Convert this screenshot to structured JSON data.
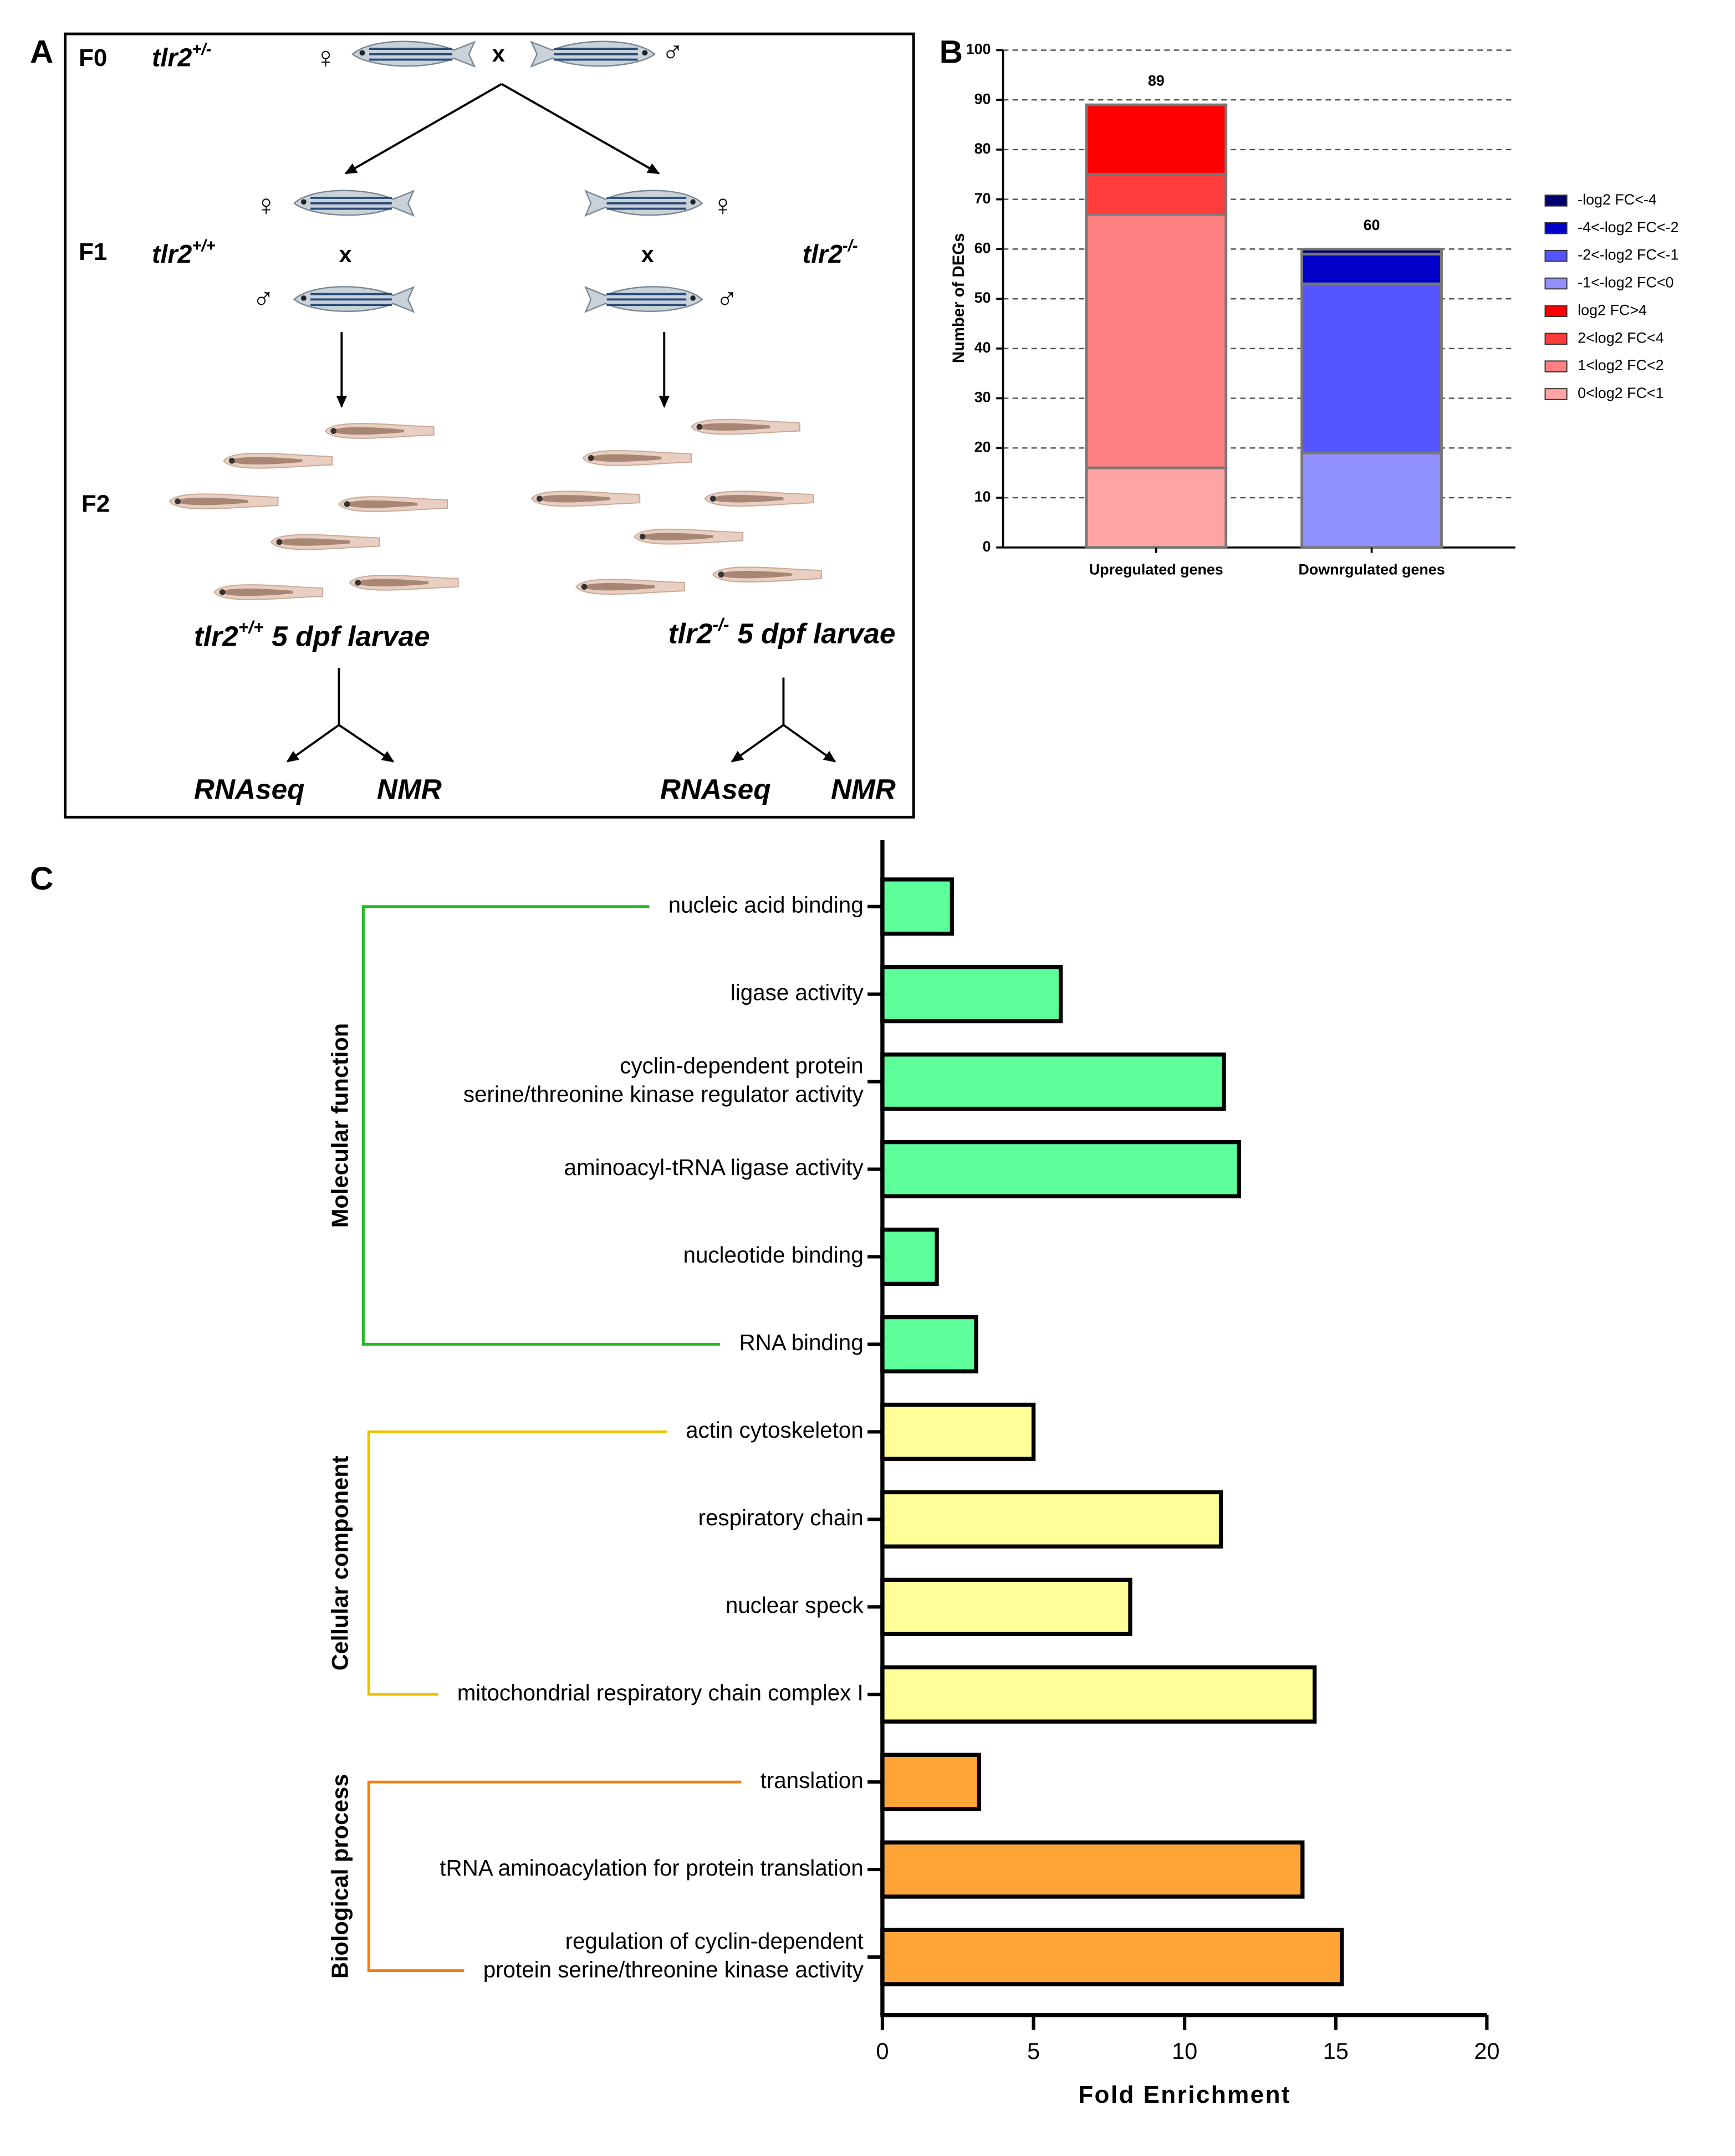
{
  "diagram": {
    "panel": "A",
    "generations": [
      "F0",
      "F1",
      "F2"
    ],
    "gene": "tlr2",
    "parent_genotype": "+/-",
    "wildtype": "+/+",
    "mutant": "-/-",
    "cross": "x",
    "female": "♀",
    "male": "♂",
    "larvae": "5 dpf larvae",
    "assays": [
      "RNAseq",
      "NMR"
    ]
  },
  "chart_data": [
    {
      "type": "stacked-bar",
      "panel": "B",
      "y_label": "Number of DEGs",
      "categories": [
        "Upregulated genes",
        "Downrgulated genes"
      ],
      "totals": [
        89,
        60
      ],
      "series": [
        {
          "name": "-log2 FC<-4",
          "color": "#00006e",
          "values": [
            null,
            1
          ]
        },
        {
          "name": "-4<-log2 FC<-2",
          "color": "#0000c8",
          "values": [
            null,
            6
          ]
        },
        {
          "name": "-2<-log2 FC<-1",
          "color": "#5555ff",
          "values": [
            null,
            34
          ]
        },
        {
          "name": "-1<-log2 FC<0",
          "color": "#9090ff",
          "values": [
            null,
            19
          ]
        },
        {
          "name": "log2 FC>4",
          "color": "#ff0000",
          "values": [
            14,
            null
          ]
        },
        {
          "name": "2<log2 FC<4",
          "color": "#ff3c3c",
          "values": [
            8,
            null
          ]
        },
        {
          "name": "1<log2 FC<2",
          "color": "#ff8080",
          "values": [
            51,
            null
          ]
        },
        {
          "name": "0<log2 FC<1",
          "color": "#ffa3a3",
          "values": [
            16,
            null
          ]
        }
      ],
      "ylim": [
        0,
        100
      ],
      "yticks": [
        0,
        10,
        20,
        30,
        40,
        50,
        60,
        70,
        80,
        90,
        100
      ],
      "grid": true
    },
    {
      "type": "hbar",
      "panel": "C",
      "x_label": "Fold Enrichment",
      "series": [
        {
          "name": "Molecular function",
          "color": "#5cff9a",
          "bracket_color": "#22bb22",
          "categories": [
            "nucleic acid binding",
            "ligase activity",
            [
              "cyclin-dependent protein",
              "serine/threonine kinase regulator activity"
            ],
            "aminoacyl-tRNA ligase activity",
            "nucleotide binding",
            "RNA binding"
          ],
          "values": [
            2.3,
            5.9,
            11.3,
            11.8,
            1.8,
            3.1
          ]
        },
        {
          "name": "Cellular component",
          "color": "#ffff99",
          "bracket_color": "#e8c400",
          "categories": [
            "actin cytoskeleton",
            "respiratory chain",
            "nuclear speck",
            "mitochondrial respiratory chain complex I"
          ],
          "values": [
            5.0,
            11.2,
            8.2,
            14.3
          ]
        },
        {
          "name": "Biological process",
          "color": "#ffa436",
          "bracket_color": "#f07f10",
          "categories": [
            "translation",
            "tRNA aminoacylation for protein translation",
            [
              "regulation of cyclin-dependent",
              "protein serine/threonine kinase activity"
            ]
          ],
          "values": [
            3.2,
            13.9,
            15.2
          ]
        }
      ],
      "xlim": [
        0,
        20
      ],
      "xticks": [
        0,
        5,
        10,
        15,
        20
      ]
    }
  ]
}
